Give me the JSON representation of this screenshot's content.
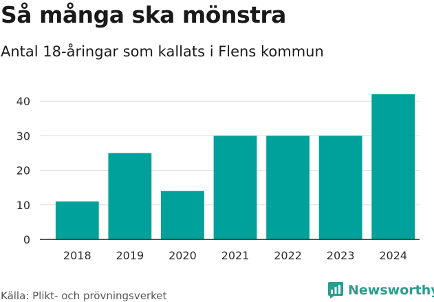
{
  "header": {
    "title": "Så många ska mönstra",
    "subtitle": "Antal 18-åringar som kallats i Flens kommun"
  },
  "footer": {
    "source": "Källa: Plikt- och prövningsverket",
    "brand": "Newsworthy",
    "brand_icon": "newsworthy-logo-icon"
  },
  "colors": {
    "bar": "#00a19a",
    "brand": "#2a9d8f"
  },
  "chart_data": {
    "type": "bar",
    "title": "Så många ska mönstra",
    "subtitle": "Antal 18-åringar som kallats i Flens kommun",
    "xlabel": "",
    "ylabel": "",
    "categories": [
      "2018",
      "2019",
      "2020",
      "2021",
      "2022",
      "2023",
      "2024"
    ],
    "values": [
      11,
      25,
      14,
      30,
      30,
      30,
      42
    ],
    "ylim": [
      0,
      45
    ],
    "yticks": [
      0,
      10,
      20,
      30,
      40
    ],
    "grid": true,
    "legend": "none"
  }
}
